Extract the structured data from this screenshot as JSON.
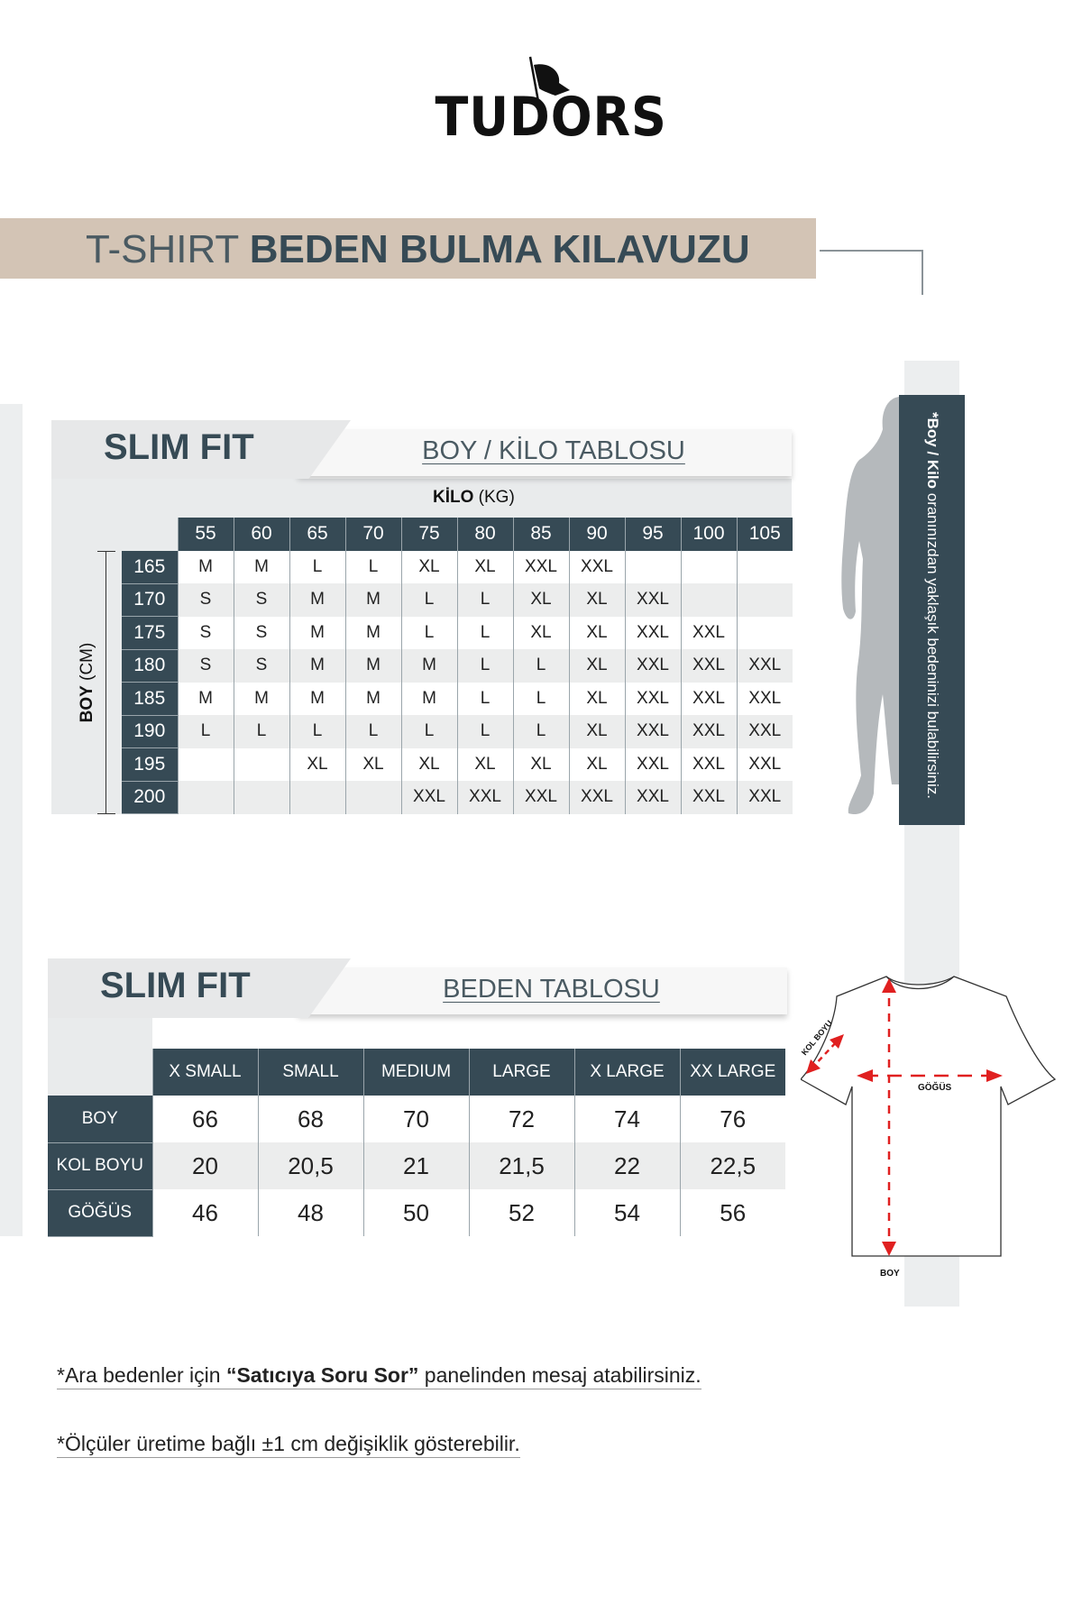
{
  "brand": {
    "logo_text": "TUDORS"
  },
  "title": {
    "light": "T-SHIRT",
    "bold": "BEDEN BULMA KILAVUZU"
  },
  "side_note": {
    "bold": "*Boy / Kilo",
    "text": " oranınızdan yaklaşık bedeninizi bulabilirsiniz."
  },
  "boy_kilo": {
    "section_label": "SLIM FIT",
    "subtitle": "BOY / KİLO TABLOSU",
    "kilo_label_bold": "KİLO",
    "kilo_label_unit": "(KG)",
    "boy_label_bold": "BOY",
    "boy_label_unit": "(CM)",
    "weights": [
      "55",
      "60",
      "65",
      "70",
      "75",
      "80",
      "85",
      "90",
      "95",
      "100",
      "105"
    ],
    "rows": [
      {
        "height": "165",
        "sizes": [
          "M",
          "M",
          "L",
          "L",
          "XL",
          "XL",
          "XXL",
          "XXL",
          "",
          "",
          ""
        ]
      },
      {
        "height": "170",
        "sizes": [
          "S",
          "S",
          "M",
          "M",
          "L",
          "L",
          "XL",
          "XL",
          "XXL",
          "",
          ""
        ]
      },
      {
        "height": "175",
        "sizes": [
          "S",
          "S",
          "M",
          "M",
          "L",
          "L",
          "XL",
          "XL",
          "XXL",
          "XXL",
          ""
        ]
      },
      {
        "height": "180",
        "sizes": [
          "S",
          "S",
          "M",
          "M",
          "M",
          "L",
          "L",
          "XL",
          "XXL",
          "XXL",
          "XXL"
        ]
      },
      {
        "height": "185",
        "sizes": [
          "M",
          "M",
          "M",
          "M",
          "M",
          "L",
          "L",
          "XL",
          "XXL",
          "XXL",
          "XXL"
        ]
      },
      {
        "height": "190",
        "sizes": [
          "L",
          "L",
          "L",
          "L",
          "L",
          "L",
          "L",
          "XL",
          "XXL",
          "XXL",
          "XXL"
        ]
      },
      {
        "height": "195",
        "sizes": [
          "",
          "",
          "XL",
          "XL",
          "XL",
          "XL",
          "XL",
          "XL",
          "XXL",
          "XXL",
          "XXL"
        ]
      },
      {
        "height": "200",
        "sizes": [
          "",
          "",
          "",
          "",
          "XXL",
          "XXL",
          "XXL",
          "XXL",
          "XXL",
          "XXL",
          "XXL"
        ]
      }
    ]
  },
  "beden": {
    "section_label": "SLIM FIT",
    "subtitle": "BEDEN TABLOSU",
    "sizes": [
      "X SMALL",
      "SMALL",
      "MEDIUM",
      "LARGE",
      "X LARGE",
      "XX LARGE"
    ],
    "rows": [
      {
        "label": "BOY",
        "values": [
          "66",
          "68",
          "70",
          "72",
          "74",
          "76"
        ]
      },
      {
        "label": "KOL BOYU",
        "values": [
          "20",
          "20,5",
          "21",
          "21,5",
          "22",
          "22,5"
        ]
      },
      {
        "label": "GÖĞÜS",
        "values": [
          "46",
          "48",
          "50",
          "52",
          "54",
          "56"
        ]
      }
    ]
  },
  "diagram": {
    "kol_boyu": "KOL BOYU",
    "gogus": "GÖĞÜS",
    "boy": "BOY"
  },
  "notes": {
    "note1_pre": "*Ara bedenler için ",
    "note1_bold": "“Satıcıya Soru Sor”",
    "note1_post": " panelinden mesaj atabilirsiniz.",
    "note2": "*Ölçüler üretime bağlı ±1 cm değişiklik gösterebilir."
  },
  "colors": {
    "dark": "#364a55",
    "beige": "#d3c4b5",
    "light_gray": "#e9ebec",
    "arrow_red": "#e02020"
  }
}
